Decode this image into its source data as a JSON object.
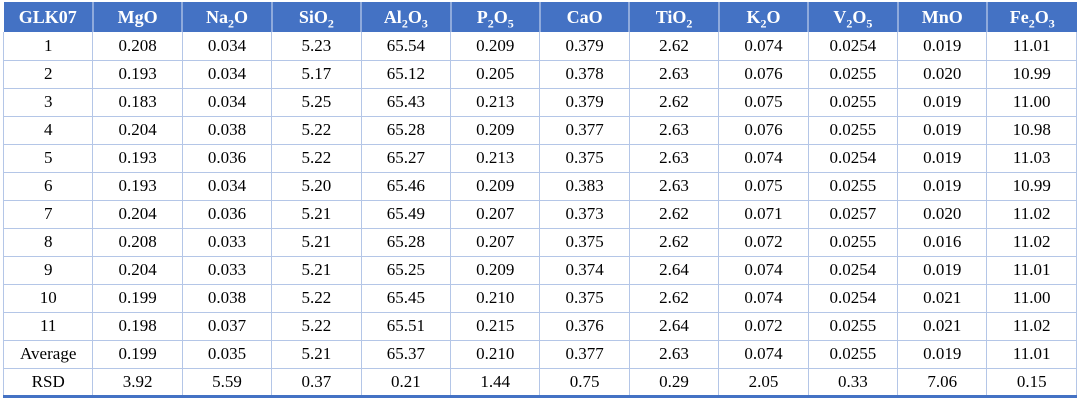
{
  "chart_data": {
    "type": "table",
    "corner_header": "GLK07",
    "columns": [
      "MgO",
      "Na2O",
      "SiO2",
      "Al2O3",
      "P2O5",
      "CaO",
      "TiO2",
      "K2O",
      "V2O5",
      "MnO",
      "Fe2O3"
    ],
    "rows": [
      {
        "label": "1",
        "values": [
          "0.208",
          "0.034",
          "5.23",
          "65.54",
          "0.209",
          "0.379",
          "2.62",
          "0.074",
          "0.0254",
          "0.019",
          "11.01"
        ]
      },
      {
        "label": "2",
        "values": [
          "0.193",
          "0.034",
          "5.17",
          "65.12",
          "0.205",
          "0.378",
          "2.63",
          "0.076",
          "0.0255",
          "0.020",
          "10.99"
        ]
      },
      {
        "label": "3",
        "values": [
          "0.183",
          "0.034",
          "5.25",
          "65.43",
          "0.213",
          "0.379",
          "2.62",
          "0.075",
          "0.0255",
          "0.019",
          "11.00"
        ]
      },
      {
        "label": "4",
        "values": [
          "0.204",
          "0.038",
          "5.22",
          "65.28",
          "0.209",
          "0.377",
          "2.63",
          "0.076",
          "0.0255",
          "0.019",
          "10.98"
        ]
      },
      {
        "label": "5",
        "values": [
          "0.193",
          "0.036",
          "5.22",
          "65.27",
          "0.213",
          "0.375",
          "2.63",
          "0.074",
          "0.0254",
          "0.019",
          "11.03"
        ]
      },
      {
        "label": "6",
        "values": [
          "0.193",
          "0.034",
          "5.20",
          "65.46",
          "0.209",
          "0.383",
          "2.63",
          "0.075",
          "0.0255",
          "0.019",
          "10.99"
        ]
      },
      {
        "label": "7",
        "values": [
          "0.204",
          "0.036",
          "5.21",
          "65.49",
          "0.207",
          "0.373",
          "2.62",
          "0.071",
          "0.0257",
          "0.020",
          "11.02"
        ]
      },
      {
        "label": "8",
        "values": [
          "0.208",
          "0.033",
          "5.21",
          "65.28",
          "0.207",
          "0.375",
          "2.62",
          "0.072",
          "0.0255",
          "0.016",
          "11.02"
        ]
      },
      {
        "label": "9",
        "values": [
          "0.204",
          "0.033",
          "5.21",
          "65.25",
          "0.209",
          "0.374",
          "2.64",
          "0.074",
          "0.0254",
          "0.019",
          "11.01"
        ]
      },
      {
        "label": "10",
        "values": [
          "0.199",
          "0.038",
          "5.22",
          "65.45",
          "0.210",
          "0.375",
          "2.62",
          "0.074",
          "0.0254",
          "0.021",
          "11.00"
        ]
      },
      {
        "label": "11",
        "values": [
          "0.198",
          "0.037",
          "5.22",
          "65.51",
          "0.215",
          "0.376",
          "2.64",
          "0.072",
          "0.0255",
          "0.021",
          "11.02"
        ]
      },
      {
        "label": "Average",
        "values": [
          "0.199",
          "0.035",
          "5.21",
          "65.37",
          "0.210",
          "0.377",
          "2.63",
          "0.074",
          "0.0255",
          "0.019",
          "11.01"
        ]
      },
      {
        "label": "RSD",
        "values": [
          "3.92",
          "5.59",
          "0.37",
          "0.21",
          "1.44",
          "0.75",
          "0.29",
          "2.05",
          "0.33",
          "7.06",
          "0.15"
        ]
      }
    ]
  },
  "colors": {
    "header_bg": "#4472C4",
    "header_text": "#FFFFFF",
    "header_divider": "#8FAADC",
    "grid_line": "#B4C6E7",
    "bottom_border": "#4472C4",
    "cell_text": "#000000",
    "row_bg": "#FFFFFF"
  }
}
